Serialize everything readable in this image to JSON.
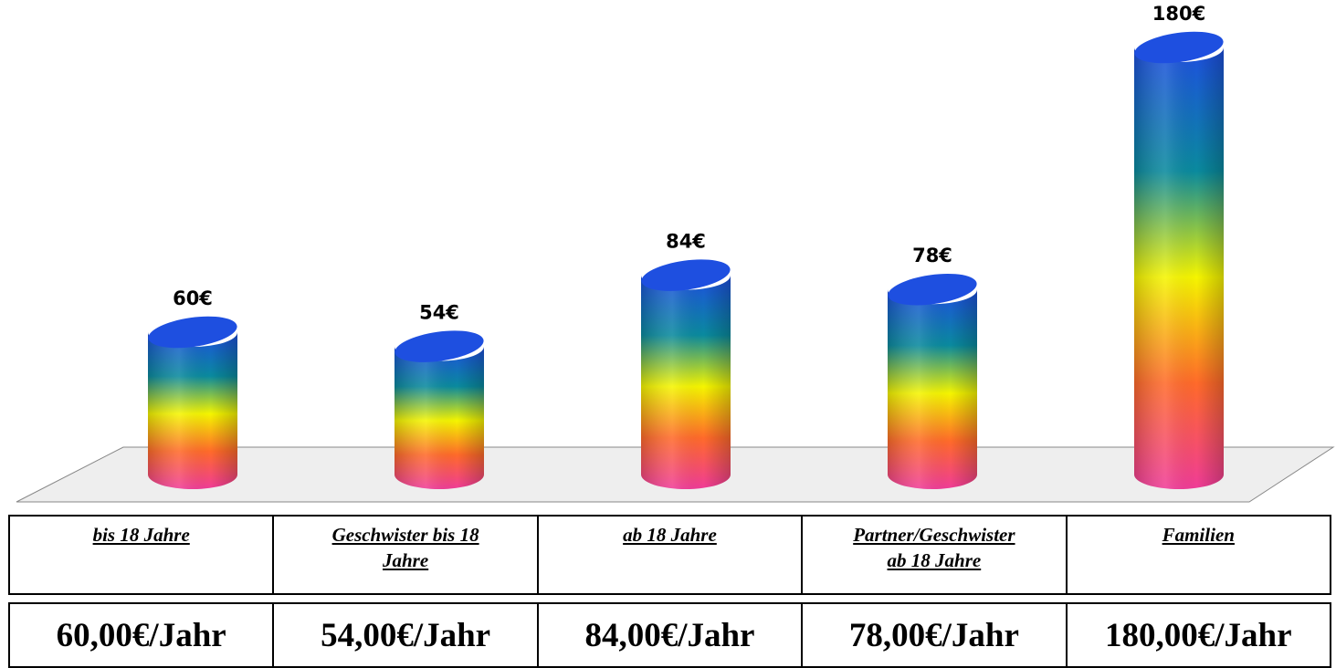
{
  "chart_data": {
    "type": "bar",
    "categories": [
      "bis 18 Jahre",
      "Geschwister bis 18 Jahre",
      "ab 18 Jahre",
      "Partner/Geschwister ab 18 Jahre",
      "Familien"
    ],
    "values": [
      60,
      54,
      84,
      78,
      180
    ],
    "data_labels": [
      "60€",
      "54€",
      "84€",
      "78€",
      "180€"
    ],
    "ylim": [
      0,
      180
    ],
    "grid": false,
    "legend": "none",
    "bar_style": "3d-cylinder-rainbow-gradient",
    "colors": {
      "gradient": [
        "#1e4fe0",
        "#0a8a9e",
        "#f5f500",
        "#ff6a2a",
        "#f03c98"
      ],
      "floor": "#eeeeee",
      "floor_border": "#888888"
    }
  },
  "table": {
    "categories": [
      {
        "lines": [
          "bis 18 Jahre"
        ]
      },
      {
        "lines": [
          "Geschwister bis 18",
          "Jahre"
        ]
      },
      {
        "lines": [
          "ab 18 Jahre"
        ]
      },
      {
        "lines": [
          "Partner/Geschwister",
          "ab 18 Jahre"
        ]
      },
      {
        "lines": [
          "Familien"
        ]
      }
    ],
    "prices": [
      "60,00€/Jahr",
      "54,00€/Jahr",
      "84,00€/Jahr",
      "78,00€/Jahr",
      "180,00€/Jahr"
    ]
  }
}
